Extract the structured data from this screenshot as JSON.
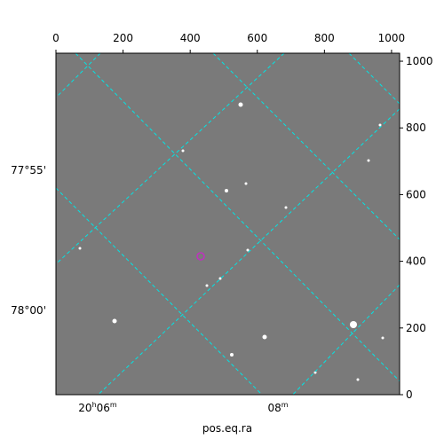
{
  "chart_data": {
    "type": "image",
    "xlabel": "pos.eq.ra",
    "xlim": [
      0,
      1024
    ],
    "ylim": [
      0,
      1024
    ],
    "xticks": [
      0,
      200,
      400,
      600,
      800,
      1000
    ],
    "yticks": [
      0,
      200,
      400,
      600,
      800,
      1000
    ],
    "ra_ticks": [
      {
        "parts": [
          "20",
          "h",
          "06",
          "m"
        ]
      },
      {
        "parts": [
          "08",
          "m"
        ]
      }
    ],
    "dec_ticks": [
      "77°55'",
      "78°00'"
    ],
    "grid_color": "#00e5e5"
  }
}
